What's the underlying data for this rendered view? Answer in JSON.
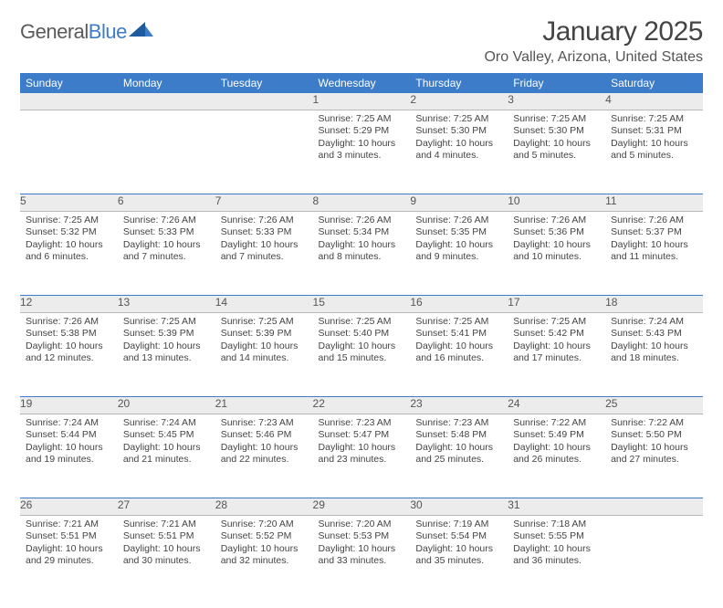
{
  "logo": {
    "text1": "General",
    "text2": "Blue"
  },
  "title": "January 2025",
  "location": "Oro Valley, Arizona, United States",
  "header_bg": "#3d7cc9",
  "daynum_bg": "#ececec",
  "text_color": "#444444",
  "days_of_week": [
    "Sunday",
    "Monday",
    "Tuesday",
    "Wednesday",
    "Thursday",
    "Friday",
    "Saturday"
  ],
  "weeks": [
    [
      null,
      null,
      null,
      {
        "n": "1",
        "sr": "7:25 AM",
        "ss": "5:29 PM",
        "dl": "10 hours and 3 minutes."
      },
      {
        "n": "2",
        "sr": "7:25 AM",
        "ss": "5:30 PM",
        "dl": "10 hours and 4 minutes."
      },
      {
        "n": "3",
        "sr": "7:25 AM",
        "ss": "5:30 PM",
        "dl": "10 hours and 5 minutes."
      },
      {
        "n": "4",
        "sr": "7:25 AM",
        "ss": "5:31 PM",
        "dl": "10 hours and 5 minutes."
      }
    ],
    [
      {
        "n": "5",
        "sr": "7:25 AM",
        "ss": "5:32 PM",
        "dl": "10 hours and 6 minutes."
      },
      {
        "n": "6",
        "sr": "7:26 AM",
        "ss": "5:33 PM",
        "dl": "10 hours and 7 minutes."
      },
      {
        "n": "7",
        "sr": "7:26 AM",
        "ss": "5:33 PM",
        "dl": "10 hours and 7 minutes."
      },
      {
        "n": "8",
        "sr": "7:26 AM",
        "ss": "5:34 PM",
        "dl": "10 hours and 8 minutes."
      },
      {
        "n": "9",
        "sr": "7:26 AM",
        "ss": "5:35 PM",
        "dl": "10 hours and 9 minutes."
      },
      {
        "n": "10",
        "sr": "7:26 AM",
        "ss": "5:36 PM",
        "dl": "10 hours and 10 minutes."
      },
      {
        "n": "11",
        "sr": "7:26 AM",
        "ss": "5:37 PM",
        "dl": "10 hours and 11 minutes."
      }
    ],
    [
      {
        "n": "12",
        "sr": "7:26 AM",
        "ss": "5:38 PM",
        "dl": "10 hours and 12 minutes."
      },
      {
        "n": "13",
        "sr": "7:25 AM",
        "ss": "5:39 PM",
        "dl": "10 hours and 13 minutes."
      },
      {
        "n": "14",
        "sr": "7:25 AM",
        "ss": "5:39 PM",
        "dl": "10 hours and 14 minutes."
      },
      {
        "n": "15",
        "sr": "7:25 AM",
        "ss": "5:40 PM",
        "dl": "10 hours and 15 minutes."
      },
      {
        "n": "16",
        "sr": "7:25 AM",
        "ss": "5:41 PM",
        "dl": "10 hours and 16 minutes."
      },
      {
        "n": "17",
        "sr": "7:25 AM",
        "ss": "5:42 PM",
        "dl": "10 hours and 17 minutes."
      },
      {
        "n": "18",
        "sr": "7:24 AM",
        "ss": "5:43 PM",
        "dl": "10 hours and 18 minutes."
      }
    ],
    [
      {
        "n": "19",
        "sr": "7:24 AM",
        "ss": "5:44 PM",
        "dl": "10 hours and 19 minutes."
      },
      {
        "n": "20",
        "sr": "7:24 AM",
        "ss": "5:45 PM",
        "dl": "10 hours and 21 minutes."
      },
      {
        "n": "21",
        "sr": "7:23 AM",
        "ss": "5:46 PM",
        "dl": "10 hours and 22 minutes."
      },
      {
        "n": "22",
        "sr": "7:23 AM",
        "ss": "5:47 PM",
        "dl": "10 hours and 23 minutes."
      },
      {
        "n": "23",
        "sr": "7:23 AM",
        "ss": "5:48 PM",
        "dl": "10 hours and 25 minutes."
      },
      {
        "n": "24",
        "sr": "7:22 AM",
        "ss": "5:49 PM",
        "dl": "10 hours and 26 minutes."
      },
      {
        "n": "25",
        "sr": "7:22 AM",
        "ss": "5:50 PM",
        "dl": "10 hours and 27 minutes."
      }
    ],
    [
      {
        "n": "26",
        "sr": "7:21 AM",
        "ss": "5:51 PM",
        "dl": "10 hours and 29 minutes."
      },
      {
        "n": "27",
        "sr": "7:21 AM",
        "ss": "5:51 PM",
        "dl": "10 hours and 30 minutes."
      },
      {
        "n": "28",
        "sr": "7:20 AM",
        "ss": "5:52 PM",
        "dl": "10 hours and 32 minutes."
      },
      {
        "n": "29",
        "sr": "7:20 AM",
        "ss": "5:53 PM",
        "dl": "10 hours and 33 minutes."
      },
      {
        "n": "30",
        "sr": "7:19 AM",
        "ss": "5:54 PM",
        "dl": "10 hours and 35 minutes."
      },
      {
        "n": "31",
        "sr": "7:18 AM",
        "ss": "5:55 PM",
        "dl": "10 hours and 36 minutes."
      },
      null
    ]
  ],
  "labels": {
    "sunrise": "Sunrise:",
    "sunset": "Sunset:",
    "daylight": "Daylight:"
  }
}
